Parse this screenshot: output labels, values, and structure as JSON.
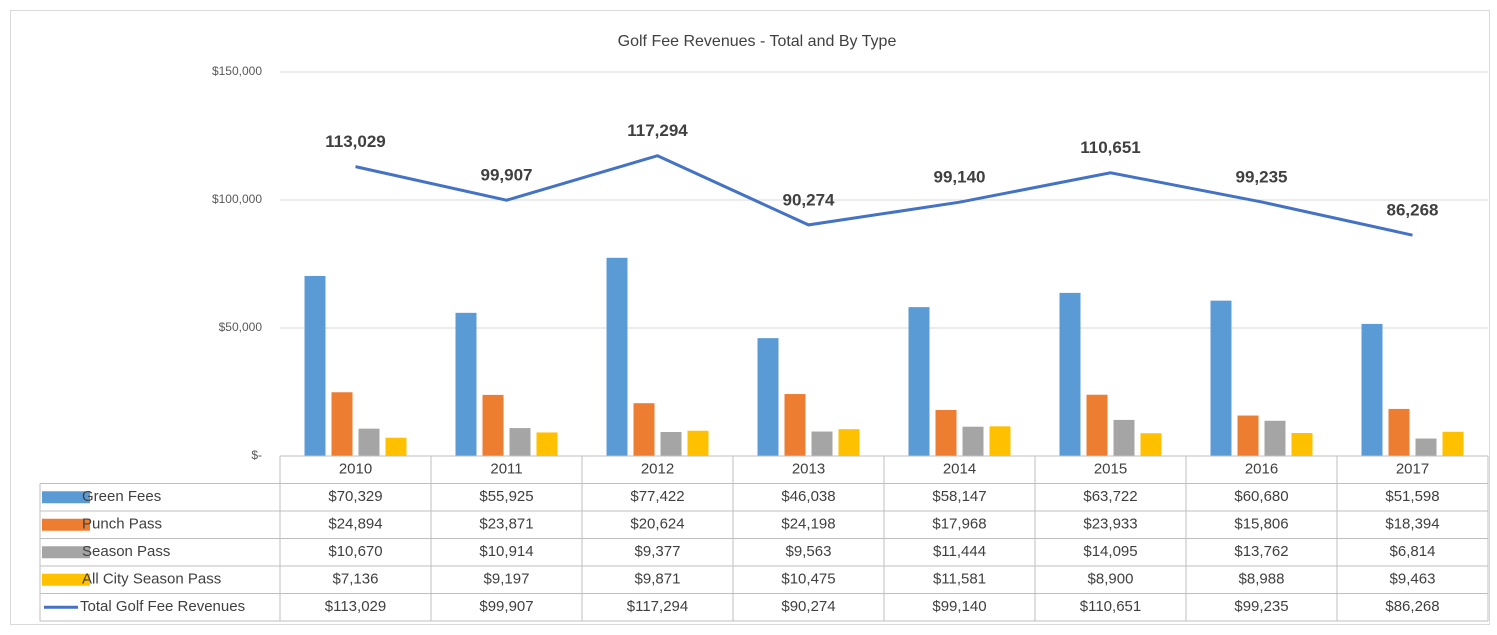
{
  "chart_data": {
    "type": "bar",
    "title": "Golf Fee Revenues - Total and By Type",
    "categories": [
      "2010",
      "2011",
      "2012",
      "2013",
      "2014",
      "2015",
      "2016",
      "2017"
    ],
    "ylim": [
      0,
      150000
    ],
    "yticks": [
      {
        "value": 0,
        "label": "$-"
      },
      {
        "value": 50000,
        "label": "$50,000"
      },
      {
        "value": 100000,
        "label": "$100,000"
      },
      {
        "value": 150000,
        "label": "$150,000"
      }
    ],
    "grid": true,
    "series": [
      {
        "name": "Green Fees",
        "type": "bar",
        "color": "#5b9bd5",
        "values": [
          70329,
          55925,
          77422,
          46038,
          58147,
          63722,
          60680,
          51598
        ],
        "table_labels": [
          "$70,329",
          "$55,925",
          "$77,422",
          "$46,038",
          "$58,147",
          "$63,722",
          "$60,680",
          "$51,598"
        ]
      },
      {
        "name": "Punch Pass",
        "type": "bar",
        "color": "#ed7d31",
        "values": [
          24894,
          23871,
          20624,
          24198,
          17968,
          23933,
          15806,
          18394
        ],
        "table_labels": [
          "$24,894",
          "$23,871",
          "$20,624",
          "$24,198",
          "$17,968",
          "$23,933",
          "$15,806",
          "$18,394"
        ]
      },
      {
        "name": "Season Pass",
        "type": "bar",
        "color": "#a5a5a5",
        "values": [
          10670,
          10914,
          9377,
          9563,
          11444,
          14095,
          13762,
          6814
        ],
        "table_labels": [
          "$10,670",
          "$10,914",
          "$9,377",
          "$9,563",
          "$11,444",
          "$14,095",
          "$13,762",
          "$6,814"
        ]
      },
      {
        "name": "All City Season Pass",
        "type": "bar",
        "color": "#ffc000",
        "values": [
          7136,
          9197,
          9871,
          10475,
          11581,
          8900,
          8988,
          9463
        ],
        "table_labels": [
          "$7,136",
          "$9,197",
          "$9,871",
          "$10,475",
          "$11,581",
          "$8,900",
          "$8,988",
          "$9,463"
        ]
      },
      {
        "name": "Total Golf Fee Revenues",
        "type": "line",
        "color": "#4472c4",
        "values": [
          113029,
          99907,
          117294,
          90274,
          99140,
          110651,
          99235,
          86268
        ],
        "value_labels": [
          "113,029",
          "99,907",
          "117,294",
          "90,274",
          "99,140",
          "110,651",
          "99,235",
          "86,268"
        ],
        "table_labels": [
          "$113,029",
          "$99,907",
          "$117,294",
          "$90,274",
          "$99,140",
          "$110,651",
          "$99,235",
          "$86,268"
        ]
      }
    ]
  }
}
